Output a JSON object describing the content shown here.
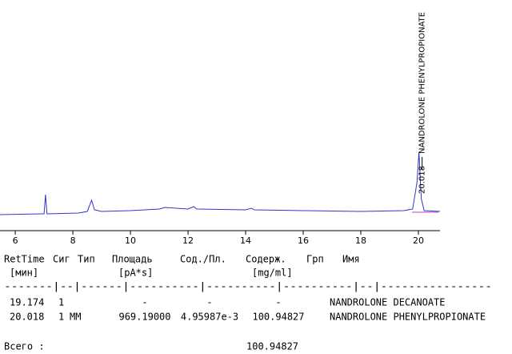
{
  "chart_data": {
    "type": "line",
    "xlim": [
      5.47,
      20.75
    ],
    "ylim": [
      0,
      288
    ],
    "xticks": [
      6,
      8,
      10,
      12,
      14,
      16,
      18,
      20
    ],
    "series": [
      {
        "color": "#3333cc",
        "x": [
          5.47,
          6.9,
          7.0,
          7.05,
          7.1,
          8.2,
          8.5,
          8.65,
          8.75,
          9.0,
          10,
          11,
          11.2,
          12,
          12.2,
          12.3,
          14,
          14.2,
          14.3,
          16,
          18,
          19.5,
          19.8,
          19.95,
          20.018,
          20.1,
          20.2,
          20.75
        ],
        "values": [
          20,
          21,
          21,
          45,
          21,
          22,
          24,
          38,
          26,
          24,
          25,
          27,
          29,
          27,
          30,
          27,
          26,
          28,
          26,
          25,
          24,
          25,
          27,
          60,
          98,
          40,
          25,
          24
        ]
      }
    ],
    "annotations": [
      {
        "x": 20.018,
        "time": "20.018",
        "name": "NANDROLONE PHENYLPROPIONATE"
      }
    ]
  },
  "table": {
    "header": [
      "RetTime",
      "Сиг",
      "Тип",
      "Площадь",
      "Сод./Пл.",
      "Содерж.",
      "Грп",
      "Имя"
    ],
    "units": [
      "[мин]",
      "[pA*s]",
      "[mg/ml]"
    ],
    "separator": "-------|--|------|----------|----------|----------|--|----------------",
    "rows": [
      [
        "19.174",
        "1",
        "",
        "-",
        "-",
        "-",
        "",
        "NANDROLONE DECANOATE"
      ],
      [
        "20.018",
        "1",
        "MM",
        "969.19000",
        "4.95987e-3",
        "100.94827",
        "",
        "NANDROLONE PHENYLPROPIONATE"
      ]
    ],
    "total_label": "Всего :",
    "total_value": "100.94827"
  }
}
